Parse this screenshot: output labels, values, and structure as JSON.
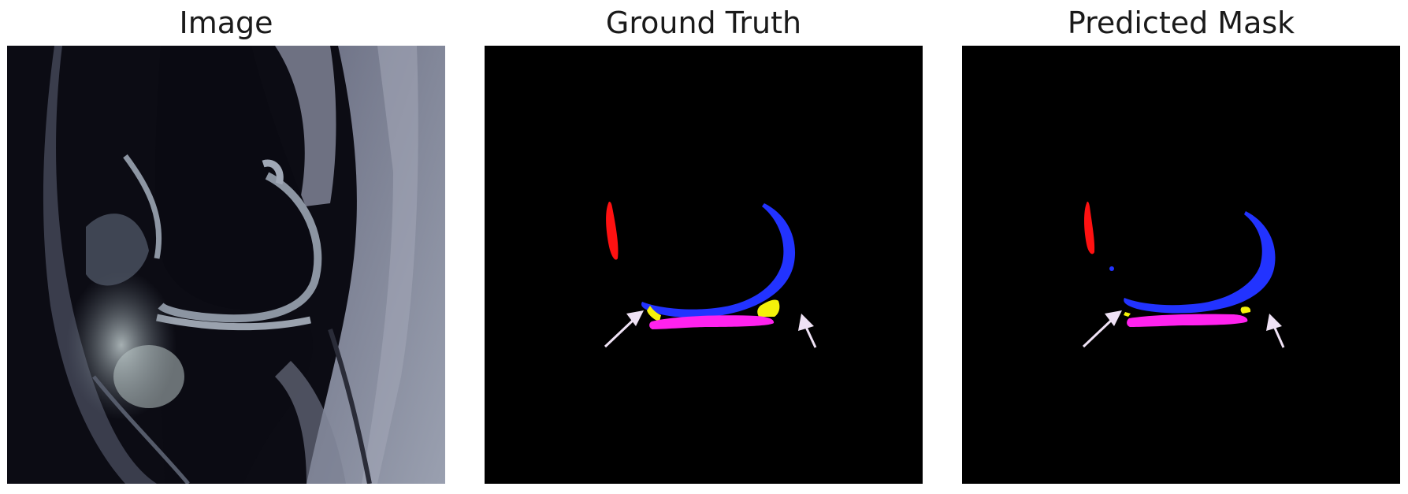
{
  "panels": [
    {
      "title": "Image"
    },
    {
      "title": "Ground Truth"
    },
    {
      "title": "Predicted Mask"
    }
  ],
  "colors": {
    "background": "#000000",
    "red_structure": "#ff1111",
    "blue_structure": "#2233ff",
    "yellow_structure": "#f5f20a",
    "magenta_structure": "#ff22ee",
    "arrow": "#efe2f5"
  },
  "icons": [
    "arrow-icon"
  ]
}
